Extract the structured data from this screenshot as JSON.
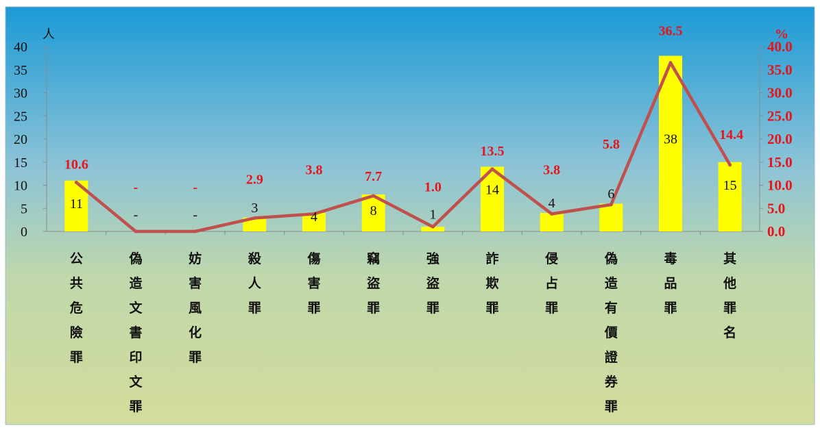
{
  "chart_data": {
    "type": "bar",
    "categories": [
      "公共危險罪",
      "偽造文書印文罪",
      "妨害風化罪",
      "殺人罪",
      "傷害罪",
      "竊盜罪",
      "強盜罪",
      "詐欺罪",
      "侵占罪",
      "偽造有價證券罪",
      "毒品罪",
      "其他罪名"
    ],
    "series": [
      {
        "type": "bar",
        "axis": "left",
        "values": [
          11,
          0,
          0,
          3,
          4,
          8,
          1,
          14,
          4,
          6,
          38,
          15
        ],
        "labels": [
          "11",
          "-",
          "-",
          "3",
          "4",
          "8",
          "1",
          "14",
          "4",
          "6",
          "38",
          "15"
        ],
        "color": "#ffff00"
      },
      {
        "type": "line",
        "axis": "right",
        "values": [
          10.6,
          0,
          0,
          2.9,
          3.8,
          7.7,
          1.0,
          13.5,
          3.8,
          5.8,
          36.5,
          14.4
        ],
        "labels": [
          "10.6",
          "-",
          "-",
          "2.9",
          "3.8",
          "7.7",
          "1.0",
          "13.5",
          "3.8",
          "5.8",
          "36.5",
          "14.4"
        ],
        "color": "#c0504d"
      }
    ],
    "y_left": {
      "unit": "人",
      "ylim": [
        0,
        40
      ],
      "ticks": [
        "0",
        "5",
        "10",
        "15",
        "20",
        "25",
        "30",
        "35",
        "40"
      ]
    },
    "y_right": {
      "unit": "%",
      "ylim": [
        0,
        40
      ],
      "ticks": [
        "0.0",
        "5.0",
        "10.0",
        "15.0",
        "20.0",
        "25.0",
        "30.0",
        "35.0",
        "40.0"
      ],
      "color": "#e8141b"
    },
    "grid": false,
    "legend": "none",
    "background": {
      "gradient_top": "#1b9ad6",
      "gradient_bottom": "#d1dc9c"
    }
  }
}
